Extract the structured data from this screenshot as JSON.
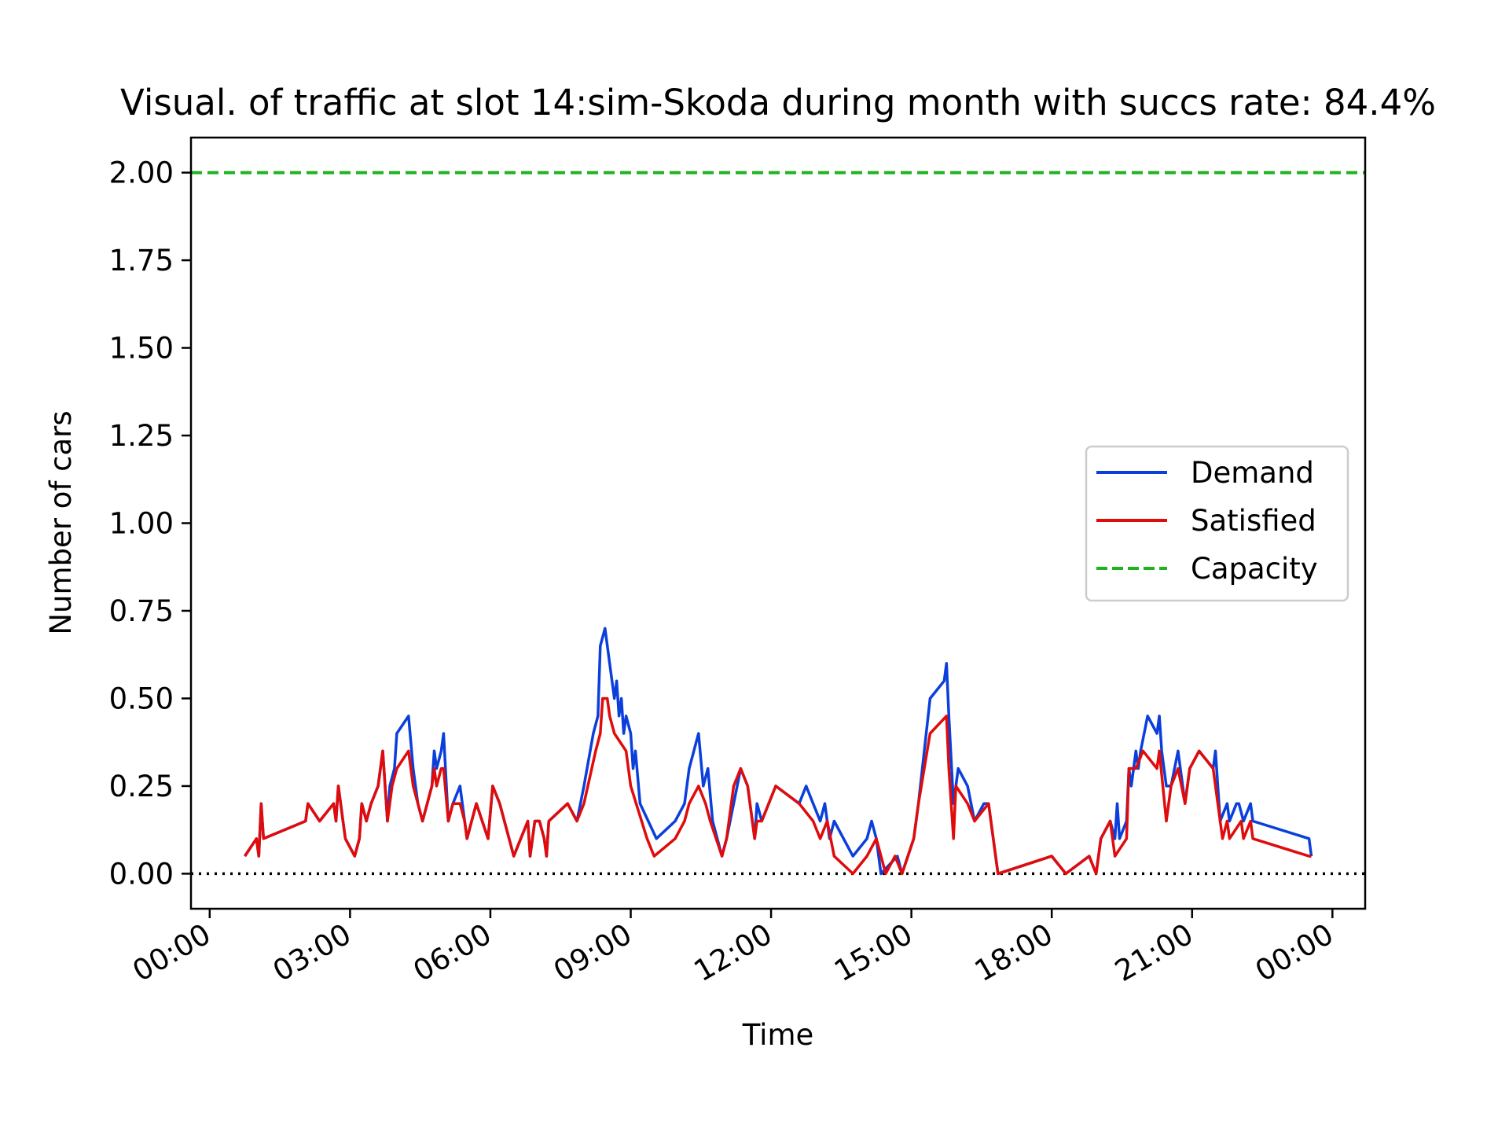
{
  "chart_data": {
    "type": "line",
    "title": "Visual. of traffic at slot 14:sim-Skoda during month with succs rate: 84.4%",
    "xlabel": "Time",
    "ylabel": "Number of cars",
    "x_unit": "hours",
    "xlim": [
      -0.4,
      24.7
    ],
    "ylim": [
      -0.1,
      2.1
    ],
    "x_ticks": [
      0,
      3,
      6,
      9,
      12,
      15,
      18,
      21,
      24
    ],
    "x_tick_labels": [
      "00:00",
      "03:00",
      "06:00",
      "09:00",
      "12:00",
      "15:00",
      "18:00",
      "21:00",
      "00:00"
    ],
    "y_ticks": [
      0,
      0.25,
      0.5,
      0.75,
      1.0,
      1.25,
      1.5,
      1.75,
      2.0
    ],
    "y_tick_labels": [
      "0.00",
      "0.25",
      "0.50",
      "0.75",
      "1.00",
      "1.25",
      "1.50",
      "1.75",
      "2.00"
    ],
    "grid": false,
    "legend_position": "center-right",
    "zero_line": {
      "y": 0,
      "style": "dotted",
      "color": "#000000"
    },
    "series": [
      {
        "name": "Demand",
        "color": "#0b3fdc",
        "style": "solid",
        "points": [
          [
            0.75,
            0.05
          ],
          [
            1.0,
            0.1
          ],
          [
            1.05,
            0.05
          ],
          [
            1.1,
            0.2
          ],
          [
            1.15,
            0.1
          ],
          [
            2.05,
            0.15
          ],
          [
            2.1,
            0.2
          ],
          [
            2.35,
            0.15
          ],
          [
            2.65,
            0.2
          ],
          [
            2.7,
            0.15
          ],
          [
            2.75,
            0.25
          ],
          [
            2.85,
            0.15
          ],
          [
            2.9,
            0.1
          ],
          [
            3.1,
            0.05
          ],
          [
            3.2,
            0.1
          ],
          [
            3.25,
            0.2
          ],
          [
            3.35,
            0.15
          ],
          [
            3.45,
            0.2
          ],
          [
            3.6,
            0.25
          ],
          [
            3.7,
            0.35
          ],
          [
            3.75,
            0.25
          ],
          [
            3.8,
            0.15
          ],
          [
            3.85,
            0.25
          ],
          [
            3.95,
            0.3
          ],
          [
            4.0,
            0.4
          ],
          [
            4.25,
            0.45
          ],
          [
            4.35,
            0.3
          ],
          [
            4.45,
            0.2
          ],
          [
            4.55,
            0.15
          ],
          [
            4.65,
            0.2
          ],
          [
            4.75,
            0.25
          ],
          [
            4.8,
            0.35
          ],
          [
            4.85,
            0.3
          ],
          [
            4.95,
            0.35
          ],
          [
            5.0,
            0.4
          ],
          [
            5.1,
            0.15
          ],
          [
            5.2,
            0.2
          ],
          [
            5.35,
            0.25
          ],
          [
            5.45,
            0.15
          ],
          [
            5.5,
            0.1
          ],
          [
            5.6,
            0.15
          ],
          [
            5.7,
            0.2
          ],
          [
            5.95,
            0.1
          ],
          [
            6.05,
            0.25
          ],
          [
            6.2,
            0.2
          ],
          [
            6.5,
            0.05
          ],
          [
            6.65,
            0.1
          ],
          [
            6.8,
            0.15
          ],
          [
            6.85,
            0.05
          ],
          [
            6.95,
            0.15
          ],
          [
            7.05,
            0.15
          ],
          [
            7.15,
            0.1
          ],
          [
            7.2,
            0.05
          ],
          [
            7.25,
            0.15
          ],
          [
            7.65,
            0.2
          ],
          [
            7.85,
            0.15
          ],
          [
            8.0,
            0.25
          ],
          [
            8.2,
            0.4
          ],
          [
            8.3,
            0.45
          ],
          [
            8.35,
            0.65
          ],
          [
            8.45,
            0.7
          ],
          [
            8.55,
            0.6
          ],
          [
            8.65,
            0.5
          ],
          [
            8.7,
            0.55
          ],
          [
            8.75,
            0.45
          ],
          [
            8.8,
            0.5
          ],
          [
            8.85,
            0.4
          ],
          [
            8.9,
            0.45
          ],
          [
            9.0,
            0.4
          ],
          [
            9.05,
            0.3
          ],
          [
            9.1,
            0.35
          ],
          [
            9.2,
            0.2
          ],
          [
            9.55,
            0.1
          ],
          [
            9.95,
            0.15
          ],
          [
            10.15,
            0.2
          ],
          [
            10.25,
            0.3
          ],
          [
            10.45,
            0.4
          ],
          [
            10.55,
            0.25
          ],
          [
            10.65,
            0.3
          ],
          [
            10.75,
            0.15
          ],
          [
            10.95,
            0.05
          ],
          [
            11.05,
            0.1
          ],
          [
            11.2,
            0.2
          ],
          [
            11.35,
            0.3
          ],
          [
            11.5,
            0.25
          ],
          [
            11.65,
            0.1
          ],
          [
            11.7,
            0.2
          ],
          [
            11.8,
            0.15
          ],
          [
            12.1,
            0.25
          ],
          [
            12.6,
            0.2
          ],
          [
            12.75,
            0.25
          ],
          [
            12.9,
            0.2
          ],
          [
            13.05,
            0.15
          ],
          [
            13.15,
            0.2
          ],
          [
            13.25,
            0.1
          ],
          [
            13.35,
            0.15
          ],
          [
            13.75,
            0.05
          ],
          [
            14.05,
            0.1
          ],
          [
            14.15,
            0.15
          ],
          [
            14.25,
            0.1
          ],
          [
            14.35,
            0.0
          ],
          [
            14.7,
            0.05
          ],
          [
            14.8,
            0.0
          ],
          [
            15.05,
            0.1
          ],
          [
            15.15,
            0.2
          ],
          [
            15.4,
            0.5
          ],
          [
            15.7,
            0.55
          ],
          [
            15.75,
            0.6
          ],
          [
            15.8,
            0.45
          ],
          [
            15.9,
            0.2
          ],
          [
            15.95,
            0.25
          ],
          [
            16.0,
            0.3
          ],
          [
            16.2,
            0.25
          ],
          [
            16.35,
            0.15
          ],
          [
            16.55,
            0.2
          ],
          [
            16.65,
            0.2
          ],
          [
            16.75,
            0.1
          ],
          [
            16.8,
            0.05
          ],
          [
            16.85,
            0.0
          ],
          [
            18.0,
            0.05
          ],
          [
            18.3,
            0.0
          ],
          [
            18.8,
            0.05
          ],
          [
            18.95,
            0.0
          ],
          [
            19.05,
            0.1
          ],
          [
            19.25,
            0.15
          ],
          [
            19.35,
            0.1
          ],
          [
            19.4,
            0.2
          ],
          [
            19.45,
            0.1
          ],
          [
            19.6,
            0.15
          ],
          [
            19.65,
            0.3
          ],
          [
            19.7,
            0.25
          ],
          [
            19.8,
            0.35
          ],
          [
            19.85,
            0.3
          ],
          [
            19.9,
            0.35
          ],
          [
            20.05,
            0.45
          ],
          [
            20.25,
            0.4
          ],
          [
            20.3,
            0.45
          ],
          [
            20.35,
            0.35
          ],
          [
            20.45,
            0.25
          ],
          [
            20.55,
            0.25
          ],
          [
            20.7,
            0.35
          ],
          [
            20.85,
            0.2
          ],
          [
            20.95,
            0.3
          ],
          [
            21.15,
            0.35
          ],
          [
            21.45,
            0.3
          ],
          [
            21.5,
            0.35
          ],
          [
            21.55,
            0.25
          ],
          [
            21.6,
            0.15
          ],
          [
            21.75,
            0.2
          ],
          [
            21.8,
            0.15
          ],
          [
            21.95,
            0.2
          ],
          [
            22.0,
            0.2
          ],
          [
            22.1,
            0.15
          ],
          [
            22.25,
            0.2
          ],
          [
            22.3,
            0.15
          ],
          [
            23.5,
            0.1
          ],
          [
            23.55,
            0.05
          ]
        ]
      },
      {
        "name": "Satisfied",
        "color": "#e00b0b",
        "style": "solid",
        "points": [
          [
            0.75,
            0.05
          ],
          [
            1.0,
            0.1
          ],
          [
            1.05,
            0.05
          ],
          [
            1.1,
            0.2
          ],
          [
            1.15,
            0.1
          ],
          [
            2.05,
            0.15
          ],
          [
            2.1,
            0.2
          ],
          [
            2.35,
            0.15
          ],
          [
            2.65,
            0.2
          ],
          [
            2.7,
            0.15
          ],
          [
            2.75,
            0.25
          ],
          [
            2.85,
            0.15
          ],
          [
            2.9,
            0.1
          ],
          [
            3.1,
            0.05
          ],
          [
            3.2,
            0.1
          ],
          [
            3.25,
            0.2
          ],
          [
            3.35,
            0.15
          ],
          [
            3.45,
            0.2
          ],
          [
            3.6,
            0.25
          ],
          [
            3.7,
            0.35
          ],
          [
            3.75,
            0.25
          ],
          [
            3.8,
            0.15
          ],
          [
            3.9,
            0.25
          ],
          [
            4.0,
            0.3
          ],
          [
            4.25,
            0.35
          ],
          [
            4.35,
            0.25
          ],
          [
            4.45,
            0.2
          ],
          [
            4.55,
            0.15
          ],
          [
            4.65,
            0.2
          ],
          [
            4.75,
            0.25
          ],
          [
            4.8,
            0.3
          ],
          [
            4.85,
            0.25
          ],
          [
            4.95,
            0.3
          ],
          [
            5.0,
            0.3
          ],
          [
            5.1,
            0.15
          ],
          [
            5.2,
            0.2
          ],
          [
            5.35,
            0.2
          ],
          [
            5.45,
            0.15
          ],
          [
            5.5,
            0.1
          ],
          [
            5.6,
            0.15
          ],
          [
            5.7,
            0.2
          ],
          [
            5.95,
            0.1
          ],
          [
            6.05,
            0.25
          ],
          [
            6.2,
            0.2
          ],
          [
            6.5,
            0.05
          ],
          [
            6.65,
            0.1
          ],
          [
            6.8,
            0.15
          ],
          [
            6.85,
            0.05
          ],
          [
            6.95,
            0.15
          ],
          [
            7.05,
            0.15
          ],
          [
            7.15,
            0.1
          ],
          [
            7.2,
            0.05
          ],
          [
            7.25,
            0.15
          ],
          [
            7.65,
            0.2
          ],
          [
            7.85,
            0.15
          ],
          [
            8.0,
            0.2
          ],
          [
            8.25,
            0.35
          ],
          [
            8.35,
            0.4
          ],
          [
            8.4,
            0.5
          ],
          [
            8.5,
            0.5
          ],
          [
            8.55,
            0.45
          ],
          [
            8.65,
            0.4
          ],
          [
            8.9,
            0.35
          ],
          [
            9.0,
            0.25
          ],
          [
            9.35,
            0.1
          ],
          [
            9.5,
            0.05
          ],
          [
            9.95,
            0.1
          ],
          [
            10.15,
            0.15
          ],
          [
            10.25,
            0.2
          ],
          [
            10.45,
            0.25
          ],
          [
            10.6,
            0.2
          ],
          [
            10.7,
            0.15
          ],
          [
            10.95,
            0.05
          ],
          [
            11.05,
            0.1
          ],
          [
            11.2,
            0.25
          ],
          [
            11.35,
            0.3
          ],
          [
            11.5,
            0.25
          ],
          [
            11.65,
            0.1
          ],
          [
            11.7,
            0.15
          ],
          [
            11.8,
            0.15
          ],
          [
            12.1,
            0.25
          ],
          [
            12.6,
            0.2
          ],
          [
            12.9,
            0.15
          ],
          [
            13.05,
            0.1
          ],
          [
            13.2,
            0.15
          ],
          [
            13.35,
            0.05
          ],
          [
            13.75,
            0.0
          ],
          [
            14.05,
            0.05
          ],
          [
            14.25,
            0.1
          ],
          [
            14.45,
            0.0
          ],
          [
            14.65,
            0.05
          ],
          [
            14.8,
            0.0
          ],
          [
            15.05,
            0.1
          ],
          [
            15.15,
            0.2
          ],
          [
            15.4,
            0.4
          ],
          [
            15.75,
            0.45
          ],
          [
            15.8,
            0.3
          ],
          [
            15.9,
            0.1
          ],
          [
            15.95,
            0.25
          ],
          [
            16.2,
            0.2
          ],
          [
            16.35,
            0.15
          ],
          [
            16.65,
            0.2
          ],
          [
            16.75,
            0.1
          ],
          [
            16.8,
            0.05
          ],
          [
            16.85,
            0.0
          ],
          [
            18.0,
            0.05
          ],
          [
            18.3,
            0.0
          ],
          [
            18.8,
            0.05
          ],
          [
            18.95,
            0.0
          ],
          [
            19.05,
            0.1
          ],
          [
            19.25,
            0.15
          ],
          [
            19.35,
            0.05
          ],
          [
            19.6,
            0.1
          ],
          [
            19.65,
            0.3
          ],
          [
            19.8,
            0.3
          ],
          [
            19.95,
            0.35
          ],
          [
            20.25,
            0.3
          ],
          [
            20.3,
            0.35
          ],
          [
            20.45,
            0.15
          ],
          [
            20.55,
            0.25
          ],
          [
            20.7,
            0.3
          ],
          [
            20.85,
            0.2
          ],
          [
            20.95,
            0.3
          ],
          [
            21.15,
            0.35
          ],
          [
            21.45,
            0.3
          ],
          [
            21.55,
            0.2
          ],
          [
            21.65,
            0.1
          ],
          [
            21.75,
            0.15
          ],
          [
            21.8,
            0.1
          ],
          [
            22.05,
            0.15
          ],
          [
            22.1,
            0.1
          ],
          [
            22.25,
            0.15
          ],
          [
            22.3,
            0.1
          ],
          [
            23.5,
            0.05
          ],
          [
            23.55,
            0.05
          ]
        ]
      },
      {
        "name": "Capacity",
        "color": "#1fb31f",
        "style": "dashed",
        "constant": 2.0
      }
    ]
  }
}
